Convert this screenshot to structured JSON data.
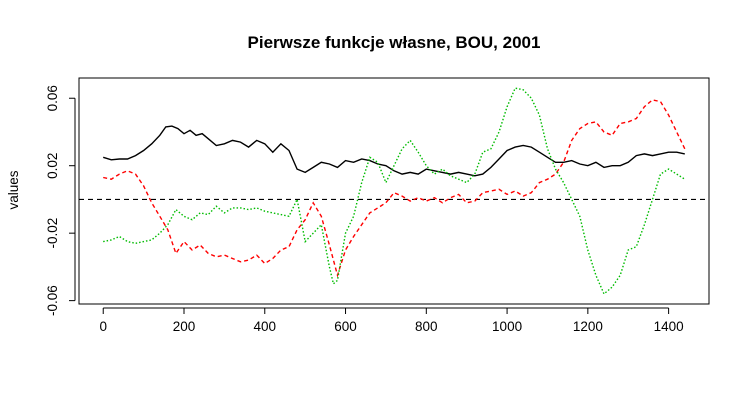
{
  "chart_data": {
    "type": "line",
    "title": "Pierwsze funkcje własne, BOU, 2001",
    "xlabel": "",
    "ylabel": "values",
    "xlim": [
      -60,
      1500
    ],
    "ylim": [
      -0.062,
      0.072
    ],
    "xticks": [
      0,
      200,
      400,
      600,
      800,
      1000,
      1200,
      1400
    ],
    "yticks": [
      -0.06,
      -0.02,
      0.02,
      0.06
    ],
    "ytick_labels": [
      "-0.06",
      "-0.02",
      "0.02",
      "0.06"
    ],
    "grid": false,
    "legend": "none",
    "reference_line": {
      "y": 0,
      "style": "dashed",
      "color": "#000000"
    },
    "series": [
      {
        "color": "#000000",
        "style": "solid",
        "x": [
          0,
          20,
          40,
          60,
          80,
          100,
          120,
          140,
          155,
          170,
          185,
          200,
          215,
          230,
          245,
          260,
          280,
          300,
          320,
          340,
          360,
          380,
          400,
          420,
          440,
          460,
          480,
          500,
          520,
          540,
          560,
          580,
          600,
          620,
          640,
          660,
          680,
          700,
          720,
          740,
          760,
          780,
          800,
          820,
          840,
          860,
          880,
          900,
          920,
          940,
          960,
          980,
          1000,
          1020,
          1040,
          1060,
          1080,
          1100,
          1120,
          1140,
          1160,
          1180,
          1200,
          1220,
          1240,
          1260,
          1280,
          1300,
          1320,
          1340,
          1360,
          1380,
          1400,
          1420,
          1440
        ],
        "y": [
          0.025,
          0.0235,
          0.024,
          0.024,
          0.026,
          0.029,
          0.033,
          0.038,
          0.043,
          0.0435,
          0.042,
          0.039,
          0.041,
          0.038,
          0.039,
          0.036,
          0.032,
          0.033,
          0.035,
          0.034,
          0.031,
          0.035,
          0.033,
          0.028,
          0.033,
          0.029,
          0.018,
          0.016,
          0.019,
          0.022,
          0.021,
          0.019,
          0.023,
          0.022,
          0.024,
          0.023,
          0.021,
          0.02,
          0.017,
          0.015,
          0.016,
          0.015,
          0.018,
          0.017,
          0.016,
          0.015,
          0.016,
          0.015,
          0.014,
          0.015,
          0.019,
          0.024,
          0.029,
          0.031,
          0.032,
          0.031,
          0.028,
          0.025,
          0.022,
          0.022,
          0.023,
          0.021,
          0.02,
          0.022,
          0.019,
          0.02,
          0.02,
          0.022,
          0.026,
          0.027,
          0.026,
          0.027,
          0.028,
          0.028,
          0.027
        ]
      },
      {
        "color": "#ff0000",
        "style": "dashed",
        "x": [
          0,
          20,
          40,
          60,
          80,
          100,
          120,
          140,
          160,
          180,
          200,
          220,
          240,
          260,
          280,
          300,
          320,
          340,
          360,
          380,
          400,
          420,
          440,
          460,
          480,
          500,
          520,
          540,
          560,
          580,
          600,
          620,
          640,
          660,
          680,
          700,
          720,
          740,
          760,
          780,
          800,
          820,
          840,
          860,
          880,
          900,
          920,
          940,
          960,
          980,
          1000,
          1020,
          1040,
          1060,
          1080,
          1100,
          1120,
          1140,
          1160,
          1180,
          1200,
          1220,
          1240,
          1260,
          1280,
          1300,
          1320,
          1340,
          1360,
          1380,
          1400,
          1420,
          1440
        ],
        "y": [
          0.013,
          0.012,
          0.015,
          0.017,
          0.015,
          0.008,
          -0.002,
          -0.01,
          -0.018,
          -0.032,
          -0.025,
          -0.03,
          -0.027,
          -0.032,
          -0.034,
          -0.033,
          -0.035,
          -0.037,
          -0.036,
          -0.033,
          -0.038,
          -0.035,
          -0.03,
          -0.028,
          -0.018,
          -0.012,
          -0.002,
          -0.01,
          -0.027,
          -0.045,
          -0.03,
          -0.022,
          -0.015,
          -0.008,
          -0.005,
          -0.002,
          0.004,
          0.002,
          -0.001,
          0.001,
          -0.001,
          0.001,
          -0.002,
          0.001,
          0.003,
          -0.002,
          -0.001,
          0.004,
          0.005,
          0.006,
          0.003,
          0.005,
          0.002,
          0.004,
          0.01,
          0.012,
          0.015,
          0.022,
          0.035,
          0.042,
          0.045,
          0.046,
          0.04,
          0.038,
          0.045,
          0.046,
          0.048,
          0.055,
          0.059,
          0.058,
          0.05,
          0.04,
          0.03
        ]
      },
      {
        "color": "#00bb00",
        "style": "dotted",
        "x": [
          0,
          20,
          40,
          60,
          80,
          100,
          120,
          140,
          160,
          180,
          200,
          220,
          240,
          260,
          280,
          300,
          320,
          340,
          360,
          380,
          400,
          420,
          440,
          460,
          480,
          500,
          520,
          540,
          560,
          570,
          580,
          600,
          620,
          640,
          660,
          680,
          700,
          720,
          740,
          760,
          780,
          800,
          820,
          840,
          860,
          880,
          900,
          920,
          940,
          960,
          980,
          1000,
          1020,
          1040,
          1060,
          1080,
          1100,
          1120,
          1140,
          1160,
          1180,
          1200,
          1220,
          1240,
          1260,
          1280,
          1300,
          1320,
          1340,
          1360,
          1380,
          1400,
          1420,
          1440
        ],
        "y": [
          -0.025,
          -0.024,
          -0.022,
          -0.025,
          -0.026,
          -0.025,
          -0.024,
          -0.02,
          -0.015,
          -0.006,
          -0.01,
          -0.012,
          -0.008,
          -0.009,
          -0.004,
          -0.008,
          -0.005,
          -0.005,
          -0.006,
          -0.005,
          -0.007,
          -0.008,
          -0.009,
          -0.01,
          0.0,
          -0.025,
          -0.02,
          -0.015,
          -0.04,
          -0.05,
          -0.048,
          -0.02,
          -0.01,
          0.01,
          0.025,
          0.022,
          0.01,
          0.02,
          0.03,
          0.035,
          0.028,
          0.02,
          0.015,
          0.018,
          0.014,
          0.012,
          0.01,
          0.015,
          0.028,
          0.03,
          0.04,
          0.055,
          0.066,
          0.065,
          0.06,
          0.05,
          0.03,
          0.018,
          0.01,
          0.0,
          -0.01,
          -0.03,
          -0.045,
          -0.056,
          -0.052,
          -0.045,
          -0.03,
          -0.028,
          -0.015,
          0.0,
          0.015,
          0.018,
          0.015,
          0.012
        ]
      }
    ]
  }
}
